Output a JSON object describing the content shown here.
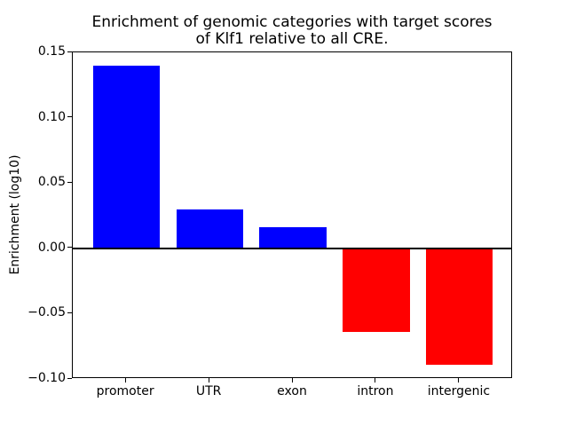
{
  "figure": {
    "background": "#ffffff"
  },
  "chart_data": {
    "type": "bar",
    "title": "Enrichment of genomic categories with target scores\nof Klf1 relative to all CRE.",
    "xlabel": "",
    "ylabel": "Enrichment (log10)",
    "categories": [
      "promoter",
      "UTR",
      "exon",
      "intron",
      "intergenic"
    ],
    "values": [
      0.14,
      0.03,
      0.016,
      -0.064,
      -0.089
    ],
    "bar_colors": [
      "#0000FF",
      "#0000FF",
      "#0000FF",
      "#FF0000",
      "#FF0000"
    ],
    "positive_color": "#0000FF",
    "negative_color": "#FF0000",
    "ylim": [
      -0.1,
      0.15
    ],
    "yticks": [
      0.15,
      0.1,
      0.05,
      0.0,
      -0.05,
      -0.1
    ],
    "ytick_labels": [
      "0.15",
      "0.10",
      "0.05",
      "0.00",
      "−0.05",
      "−0.10"
    ],
    "bar_width_fraction": 0.8,
    "x_margin": 0.64,
    "grid": false,
    "legend": "none",
    "zero_line": true,
    "axis_color": "#000000",
    "text_color": "#000000"
  }
}
